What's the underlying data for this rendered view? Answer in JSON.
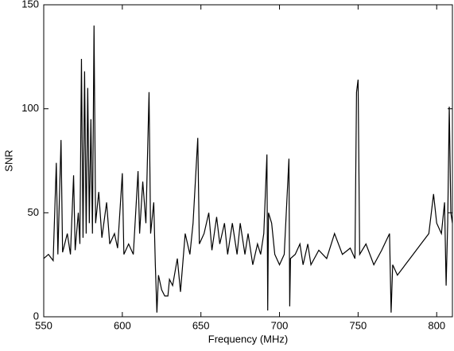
{
  "chart_data": {
    "type": "line",
    "xlabel": "Frequency (MHz)",
    "ylabel": "SNR",
    "color": "#000000",
    "xlim": [
      550,
      810
    ],
    "ylim": [
      0,
      150
    ],
    "xticks": [
      550,
      600,
      650,
      700,
      750,
      800
    ],
    "yticks": [
      0,
      50,
      100,
      150
    ],
    "x": [
      550,
      553,
      556,
      558,
      559,
      561,
      562,
      565,
      567,
      569,
      570,
      572,
      573,
      574,
      575,
      576,
      577,
      578,
      579,
      580,
      581,
      582,
      583,
      585,
      587,
      590,
      592,
      595,
      597,
      600,
      601,
      604,
      607,
      610,
      611,
      613,
      615,
      617,
      618,
      620,
      621,
      622,
      623,
      625,
      627,
      629,
      630,
      632,
      635,
      637,
      640,
      643,
      645,
      648,
      649,
      652,
      655,
      657,
      660,
      662,
      665,
      667,
      670,
      673,
      675,
      678,
      680,
      683,
      686,
      688,
      690,
      692,
      692.5,
      693,
      695,
      697,
      700,
      703,
      706,
      706.5,
      707,
      710,
      713,
      715,
      718,
      720,
      725,
      730,
      735,
      740,
      745,
      748,
      749,
      750,
      751,
      755,
      760,
      765,
      770,
      771,
      772,
      775,
      780,
      785,
      790,
      795,
      798,
      800,
      803,
      805,
      806,
      807,
      808,
      809,
      810
    ],
    "values": [
      28,
      30,
      27,
      74,
      30,
      85,
      31,
      40,
      30,
      68,
      32,
      50,
      35,
      124,
      38,
      118,
      40,
      110,
      45,
      95,
      40,
      140,
      45,
      60,
      38,
      55,
      35,
      40,
      33,
      69,
      30,
      35,
      30,
      70,
      40,
      65,
      45,
      108,
      40,
      55,
      25,
      2,
      20,
      13,
      10,
      10,
      18,
      15,
      28,
      12,
      40,
      30,
      45,
      86,
      35,
      40,
      50,
      32,
      48,
      35,
      45,
      30,
      45,
      30,
      45,
      30,
      40,
      25,
      35,
      30,
      40,
      78,
      3,
      50,
      45,
      30,
      25,
      30,
      76,
      5,
      28,
      30,
      35,
      25,
      35,
      25,
      32,
      28,
      40,
      30,
      33,
      28,
      108,
      114,
      30,
      35,
      25,
      32,
      40,
      2,
      25,
      20,
      25,
      30,
      35,
      40,
      59,
      45,
      40,
      55,
      15,
      45,
      101,
      50,
      45
    ]
  }
}
